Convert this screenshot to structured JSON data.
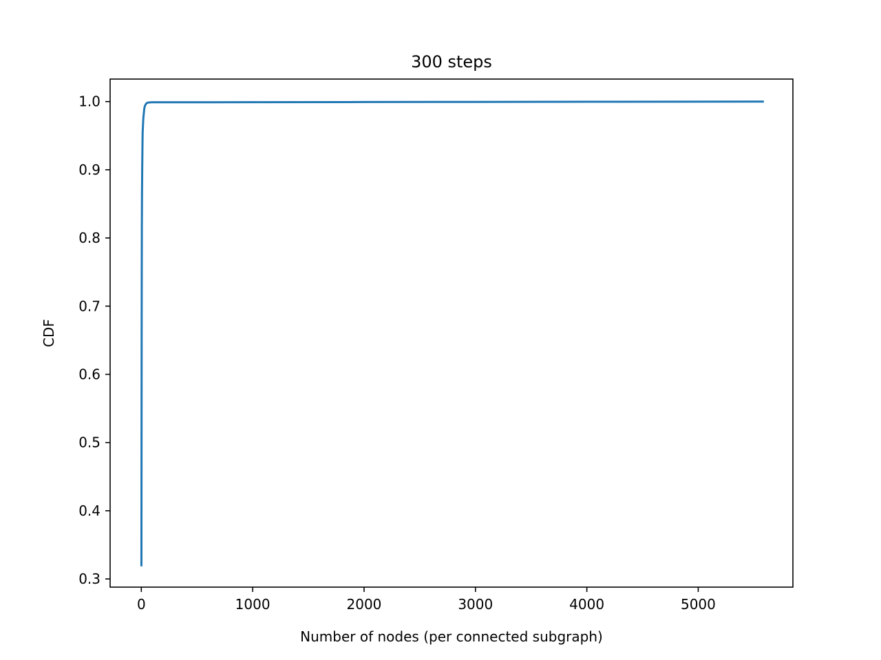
{
  "chart_data": {
    "type": "line",
    "title": "300 steps",
    "xlabel": "Number of nodes (per connected subgraph)",
    "ylabel": "CDF",
    "xlim": [
      -280,
      5850
    ],
    "ylim": [
      0.288,
      1.033
    ],
    "xticks": [
      0,
      1000,
      2000,
      3000,
      4000,
      5000
    ],
    "yticks": [
      0.3,
      0.4,
      0.5,
      0.6,
      0.7,
      0.8,
      0.9,
      1.0
    ],
    "ytick_labels": [
      "0.3",
      "0.4",
      "0.5",
      "0.6",
      "0.7",
      "0.8",
      "0.9",
      "1.0"
    ],
    "grid": false,
    "series": [
      {
        "color": "#1f77b4",
        "x": [
          1,
          2,
          3,
          4,
          5,
          6,
          8,
          10,
          12,
          15,
          18,
          22,
          27,
          33,
          40,
          50,
          60,
          80,
          100,
          150,
          300,
          600,
          1000,
          2000,
          3000,
          4000,
          5000,
          5580
        ],
        "y": [
          0.32,
          0.5,
          0.65,
          0.75,
          0.82,
          0.86,
          0.9,
          0.93,
          0.955,
          0.965,
          0.975,
          0.982,
          0.99,
          0.994,
          0.996,
          0.998,
          0.9985,
          0.9988,
          0.999,
          0.999,
          0.999,
          0.999,
          0.9991,
          0.9993,
          0.9995,
          0.9997,
          0.9999,
          1.0
        ]
      }
    ]
  }
}
